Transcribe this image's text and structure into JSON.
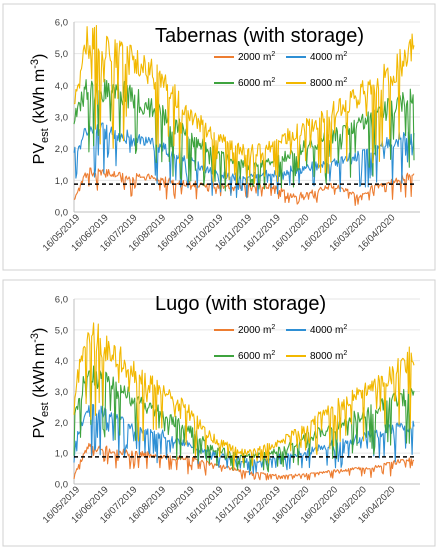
{
  "chart_data": [
    {
      "type": "line",
      "title": "Tabernas (with storage)",
      "ylabel": {
        "main": "PV",
        "sub": "est",
        "unit": " (kWh m",
        "sup": "-3",
        "close": ")"
      },
      "ylim": [
        0,
        6
      ],
      "yticks": [
        "0,0",
        "1,0",
        "2,0",
        "3,0",
        "4,0",
        "5,0",
        "6,0"
      ],
      "xticks": [
        "16/05/2019",
        "16/06/2019",
        "16/07/2019",
        "16/08/2019",
        "16/09/2019",
        "16/10/2019",
        "16/11/2019",
        "16/12/2019",
        "16/01/2020",
        "16/02/2020",
        "16/03/2020",
        "16/04/2020"
      ],
      "reference_line": 0.88,
      "grid": true,
      "legend_position": "top-right",
      "series": [
        {
          "name": "2000 m",
          "sup": "2",
          "color": "#ED7D31",
          "values": [
            0.4,
            1.4,
            1.35,
            1.32,
            1.25,
            1.2,
            1.15,
            1.1,
            1.0,
            0.95,
            0.9,
            0.9,
            0.9,
            0.9,
            0.9,
            0.85,
            0.55,
            0.65,
            0.8,
            0.9,
            0.75,
            0.5,
            0.85,
            1.0,
            1.15,
            1.3
          ]
        },
        {
          "name": "4000 m",
          "sup": "2",
          "color": "#2E8FD4",
          "values": [
            2.0,
            2.85,
            2.8,
            2.7,
            2.55,
            2.4,
            2.3,
            2.1,
            1.85,
            1.6,
            1.45,
            1.3,
            1.2,
            1.2,
            1.3,
            1.35,
            1.45,
            1.5,
            1.6,
            1.7,
            1.8,
            1.9,
            2.1,
            2.35,
            2.55,
            2.5
          ]
        },
        {
          "name": "6000 m",
          "sup": "2",
          "color": "#3EA33E",
          "values": [
            3.1,
            4.3,
            4.25,
            4.15,
            4.0,
            3.75,
            3.5,
            3.15,
            2.8,
            2.4,
            2.1,
            1.85,
            1.65,
            1.6,
            1.65,
            1.8,
            2.0,
            2.25,
            2.4,
            2.6,
            2.75,
            3.0,
            3.2,
            3.5,
            3.85,
            3.8
          ]
        },
        {
          "name": "8000 m",
          "sup": "2",
          "color": "#F2B800",
          "values": [
            4.0,
            5.85,
            5.75,
            5.55,
            5.3,
            5.0,
            4.7,
            4.2,
            3.7,
            3.2,
            2.75,
            2.4,
            2.2,
            2.1,
            2.2,
            2.4,
            2.65,
            2.95,
            3.2,
            3.45,
            3.7,
            4.0,
            4.3,
            4.65,
            5.1,
            5.7
          ]
        }
      ]
    },
    {
      "type": "line",
      "title": "Lugo (with storage)",
      "ylabel": {
        "main": "PV",
        "sub": "est",
        "unit": " (kWh m",
        "sup": "-3",
        "close": ")"
      },
      "ylim": [
        0,
        6
      ],
      "yticks": [
        "0,0",
        "1,0",
        "2,0",
        "3,0",
        "4,0",
        "5,0",
        "6,0"
      ],
      "xticks": [
        "16/05/2019",
        "16/06/2019",
        "16/07/2019",
        "16/08/2019",
        "16/09/2019",
        "16/10/2019",
        "16/11/2019",
        "16/12/2019",
        "16/01/2020",
        "16/02/2020",
        "16/03/2020",
        "16/04/2020"
      ],
      "reference_line": 0.88,
      "grid": true,
      "legend_position": "top-right",
      "series": [
        {
          "name": "2000 m",
          "sup": "2",
          "color": "#ED7D31",
          "values": [
            0.3,
            1.3,
            1.25,
            1.15,
            1.1,
            1.05,
            1.0,
            0.95,
            0.9,
            0.9,
            0.7,
            0.6,
            0.5,
            0.4,
            0.35,
            0.3,
            0.3,
            0.35,
            0.4,
            0.45,
            0.5,
            0.55,
            0.6,
            0.7,
            0.8,
            0.9
          ]
        },
        {
          "name": "4000 m",
          "sup": "2",
          "color": "#2E8FD4",
          "values": [
            1.5,
            2.6,
            2.5,
            2.3,
            2.1,
            1.9,
            1.8,
            1.65,
            1.5,
            1.3,
            1.1,
            0.95,
            0.85,
            0.8,
            0.85,
            0.95,
            1.0,
            1.1,
            1.25,
            1.4,
            1.5,
            1.6,
            1.75,
            1.9,
            2.0,
            2.05
          ]
        },
        {
          "name": "6000 m",
          "sup": "2",
          "color": "#3EA33E",
          "values": [
            2.4,
            3.9,
            3.7,
            3.4,
            3.1,
            2.8,
            2.6,
            2.35,
            2.1,
            1.7,
            1.35,
            1.15,
            1.0,
            0.95,
            1.05,
            1.2,
            1.35,
            1.6,
            1.8,
            2.0,
            2.2,
            2.4,
            2.6,
            2.8,
            3.0,
            3.1
          ]
        },
        {
          "name": "8000 m",
          "sup": "2",
          "color": "#F2B800",
          "values": [
            3.2,
            5.4,
            5.0,
            4.6,
            4.1,
            3.7,
            3.4,
            3.1,
            2.8,
            2.2,
            1.7,
            1.4,
            1.2,
            1.1,
            1.25,
            1.45,
            1.7,
            2.0,
            2.3,
            2.6,
            2.9,
            3.2,
            3.45,
            3.75,
            4.1,
            4.6
          ]
        }
      ]
    }
  ]
}
